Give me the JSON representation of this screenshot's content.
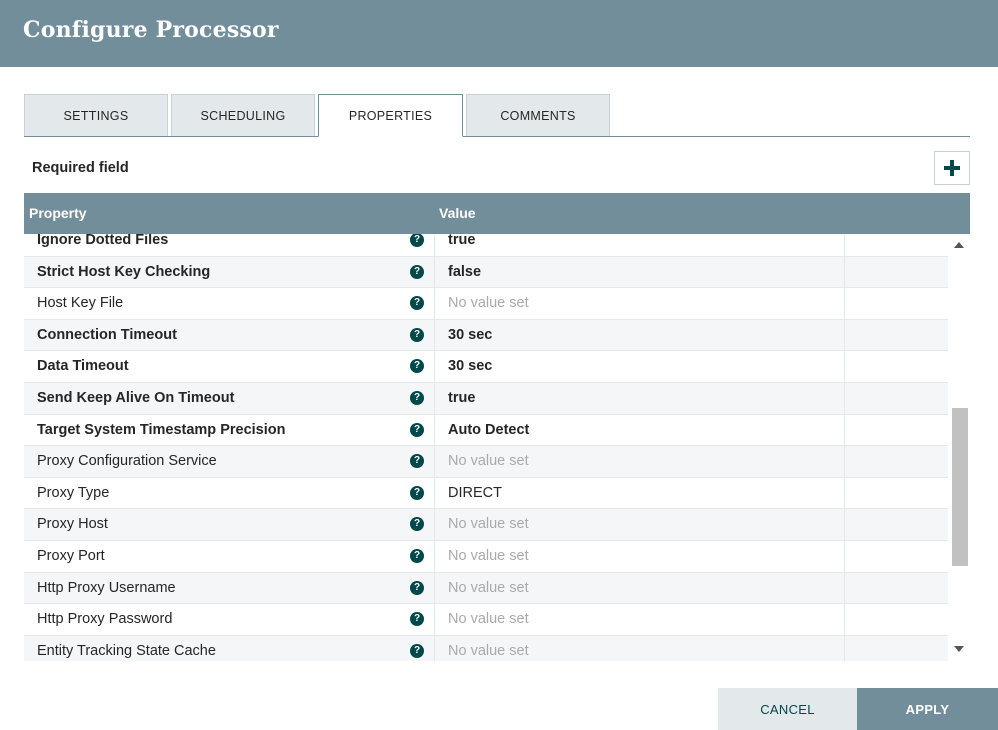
{
  "dialog": {
    "title": "Configure Processor"
  },
  "tabs": [
    {
      "label": "SETTINGS"
    },
    {
      "label": "SCHEDULING"
    },
    {
      "label": "PROPERTIES"
    },
    {
      "label": "COMMENTS"
    }
  ],
  "active_tab": "PROPERTIES",
  "required_label": "Required field",
  "add_icon": "plus-icon",
  "table": {
    "headers": {
      "property": "Property",
      "value": "Value"
    },
    "rows": [
      {
        "name": "Ignore Dotted Files",
        "value": "true",
        "required": true,
        "empty": false
      },
      {
        "name": "Strict Host Key Checking",
        "value": "false",
        "required": true,
        "empty": false
      },
      {
        "name": "Host Key File",
        "value": "No value set",
        "required": false,
        "empty": true
      },
      {
        "name": "Connection Timeout",
        "value": "30 sec",
        "required": true,
        "empty": false
      },
      {
        "name": "Data Timeout",
        "value": "30 sec",
        "required": true,
        "empty": false
      },
      {
        "name": "Send Keep Alive On Timeout",
        "value": "true",
        "required": true,
        "empty": false
      },
      {
        "name": "Target System Timestamp Precision",
        "value": "Auto Detect",
        "required": true,
        "empty": false
      },
      {
        "name": "Proxy Configuration Service",
        "value": "No value set",
        "required": false,
        "empty": true
      },
      {
        "name": "Proxy Type",
        "value": "DIRECT",
        "required": false,
        "empty": false
      },
      {
        "name": "Proxy Host",
        "value": "No value set",
        "required": false,
        "empty": true
      },
      {
        "name": "Proxy Port",
        "value": "No value set",
        "required": false,
        "empty": true
      },
      {
        "name": "Http Proxy Username",
        "value": "No value set",
        "required": false,
        "empty": true
      },
      {
        "name": "Http Proxy Password",
        "value": "No value set",
        "required": false,
        "empty": true
      },
      {
        "name": "Entity Tracking State Cache",
        "value": "No value set",
        "required": false,
        "empty": true
      }
    ],
    "help_icon": "question-circle-icon"
  },
  "buttons": {
    "cancel": "CANCEL",
    "apply": "APPLY"
  },
  "colors": {
    "header": "#728e9b",
    "accent_dark": "#004849",
    "tab_inactive": "#e3e8eb"
  }
}
